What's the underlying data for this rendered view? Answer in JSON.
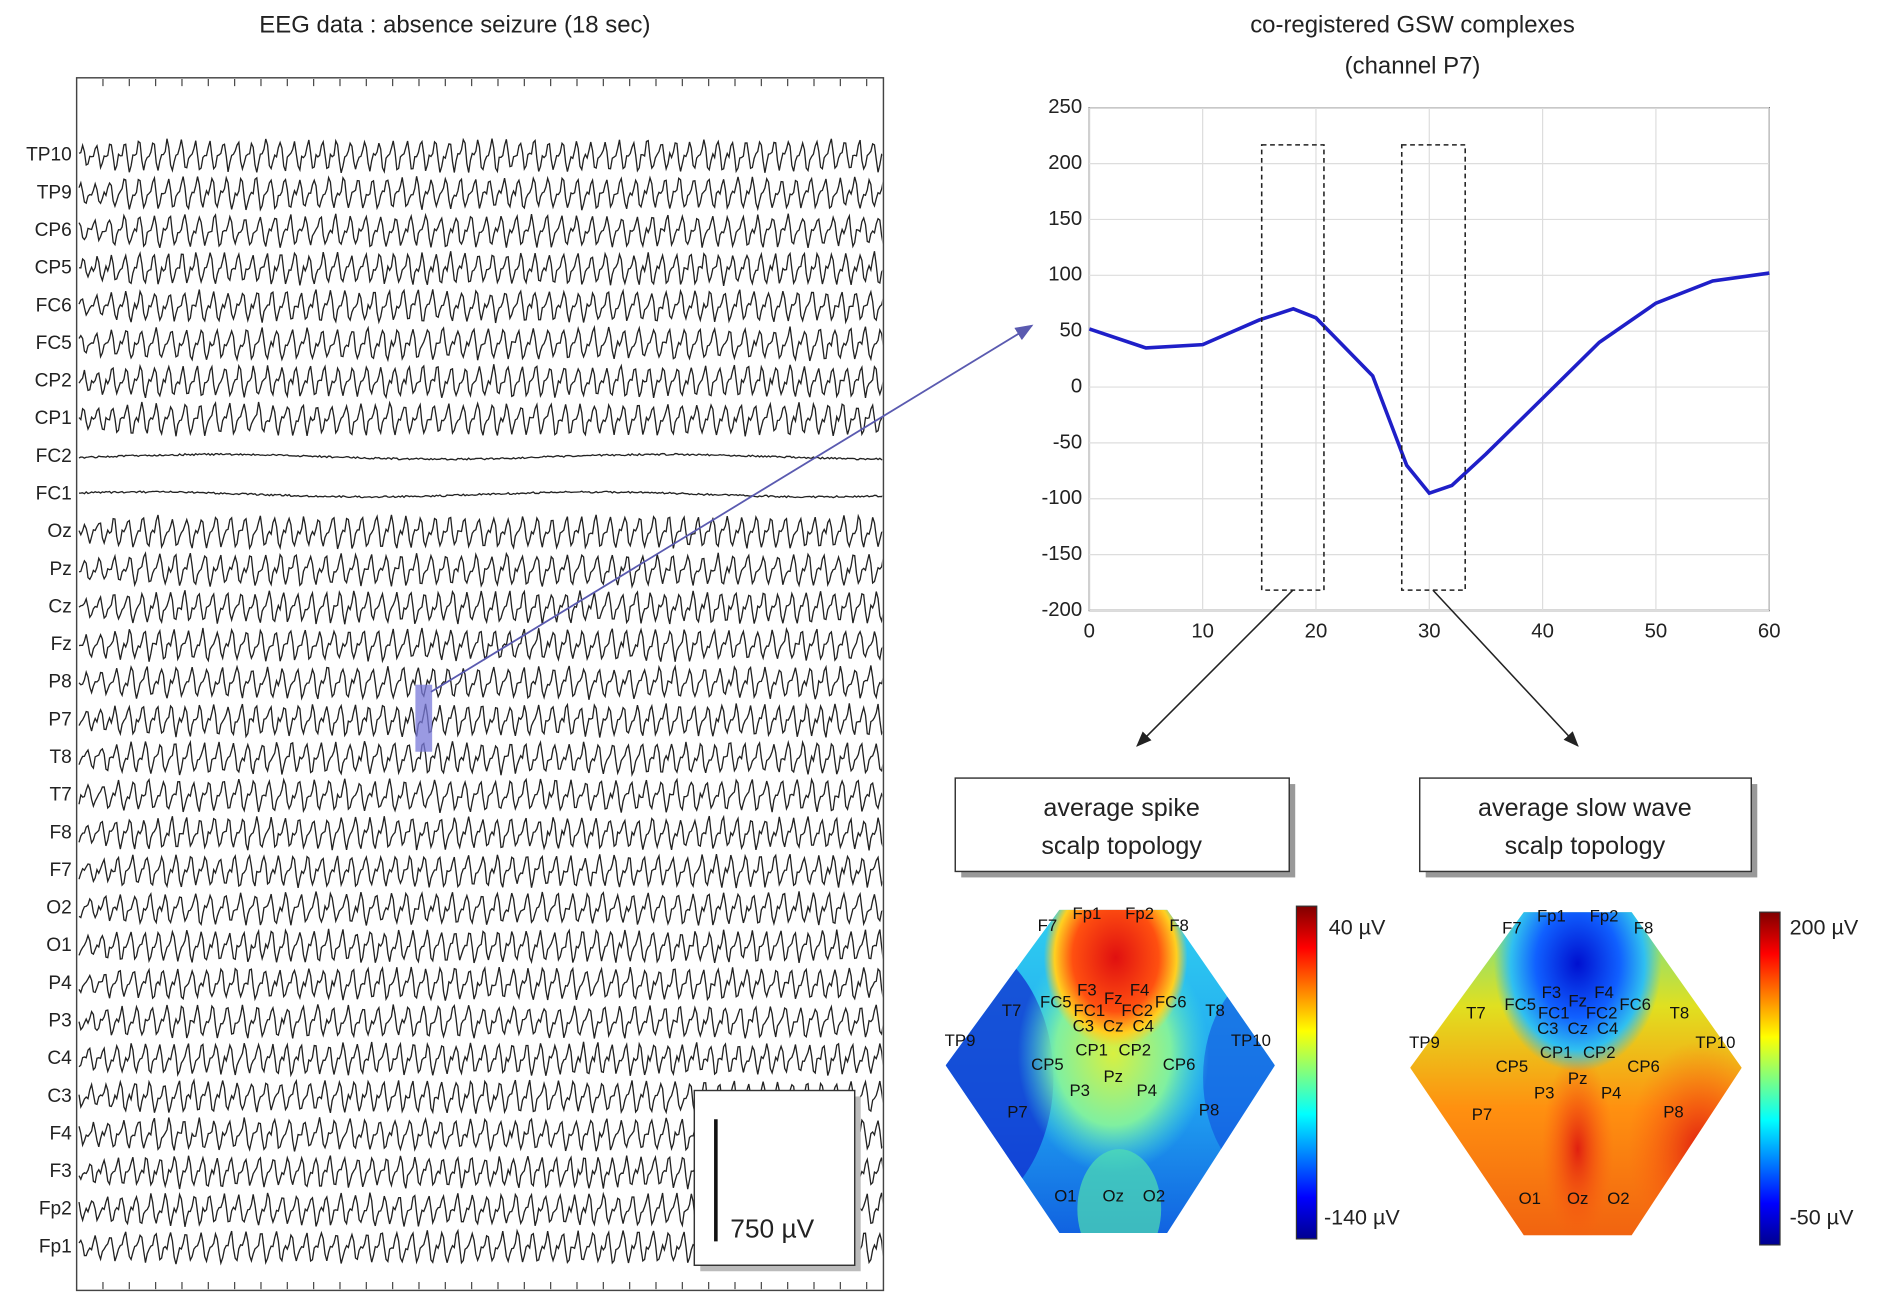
{
  "eeg": {
    "title": "EEG data : absence seizure (18 sec)",
    "channels": [
      "TP10",
      "TP9",
      "CP6",
      "CP5",
      "FC6",
      "FC5",
      "CP2",
      "CP1",
      "FC2",
      "FC1",
      "Oz",
      "Pz",
      "Cz",
      "Fz",
      "P8",
      "P7",
      "T8",
      "T7",
      "F8",
      "F7",
      "O2",
      "O1",
      "P4",
      "P3",
      "C4",
      "C3",
      "F4",
      "F3",
      "Fp2",
      "Fp1"
    ],
    "scale_bar": "750 µV"
  },
  "chart_data": {
    "type": "line",
    "title": "co-registered GSW complexes",
    "subtitle": "(channel P7)",
    "x": [
      0,
      5,
      10,
      15,
      18,
      20,
      25,
      28,
      30,
      32,
      35,
      40,
      45,
      50,
      55,
      60
    ],
    "series": [
      {
        "color": "#1f1fc8",
        "values": [
          52,
          35,
          38,
          60,
          70,
          62,
          10,
          -70,
          -95,
          -88,
          -60,
          -10,
          40,
          75,
          95,
          102
        ]
      }
    ],
    "xlim": [
      0,
      60
    ],
    "xticks": [
      0,
      10,
      20,
      30,
      40,
      50,
      60
    ],
    "ylim": [
      -200,
      250
    ],
    "yticks": [
      -200,
      -150,
      -100,
      -50,
      0,
      50,
      100,
      150,
      200,
      250
    ],
    "grid": true
  },
  "topographies": [
    {
      "label": [
        "average spike",
        "scalp topology"
      ],
      "colorbar": {
        "max_label": "40 µV",
        "min_label": "-140 µV"
      },
      "electrodes": [
        "Fp1",
        "Fp2",
        "F7",
        "F8",
        "F3",
        "Fz",
        "F4",
        "FC5",
        "FC1",
        "FC2",
        "FC6",
        "T7",
        "C3",
        "Cz",
        "C4",
        "T8",
        "TP9",
        "CP5",
        "CP1",
        "CP2",
        "CP6",
        "TP10",
        "P7",
        "P3",
        "Pz",
        "P4",
        "P8",
        "O1",
        "Oz",
        "O2"
      ]
    },
    {
      "label": [
        "average slow wave",
        "scalp topology"
      ],
      "colorbar": {
        "max_label": "200 µV",
        "min_label": "-50 µV"
      },
      "electrodes": [
        "Fp1",
        "Fp2",
        "F7",
        "F8",
        "F3",
        "Fz",
        "F4",
        "FC5",
        "FC1",
        "FC2",
        "FC6",
        "T7",
        "C3",
        "Cz",
        "C4",
        "T8",
        "TP9",
        "CP5",
        "CP1",
        "CP2",
        "CP6",
        "TP10",
        "P7",
        "P3",
        "Pz",
        "P4",
        "P8",
        "O1",
        "Oz",
        "O2"
      ]
    }
  ]
}
